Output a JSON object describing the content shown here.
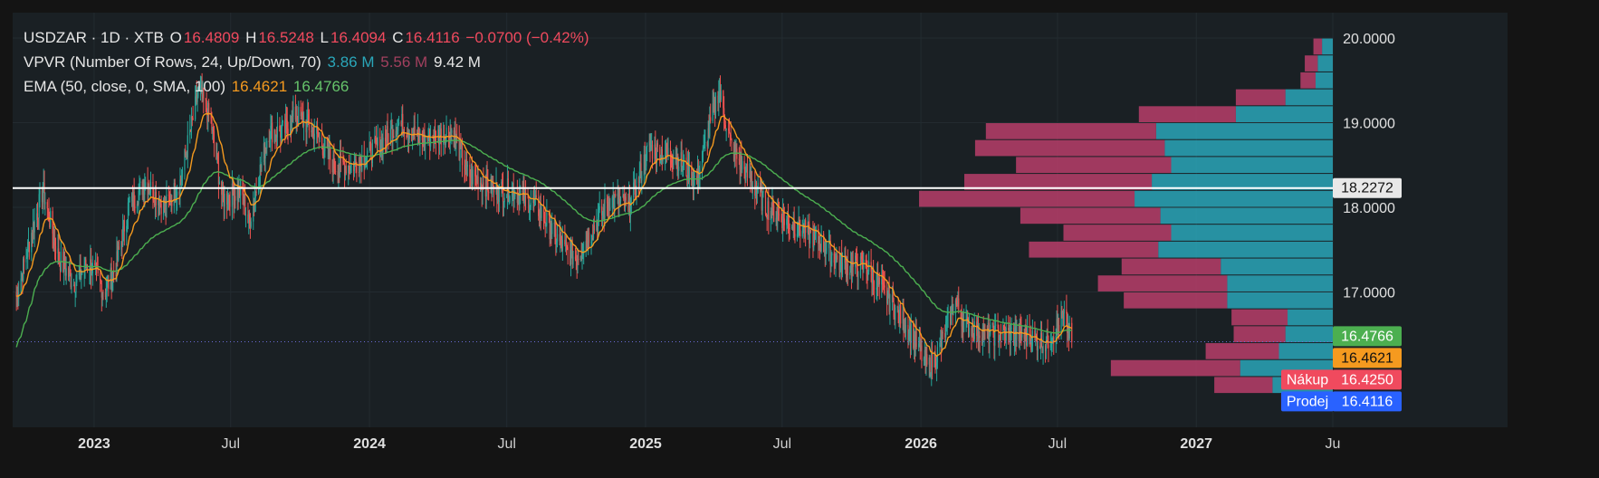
{
  "legend": {
    "symbol": "USDZAR · 1D · XTB",
    "ohlc": [
      {
        "key": "O",
        "value": "16.4809"
      },
      {
        "key": "H",
        "value": "16.5248"
      },
      {
        "key": "L",
        "value": "16.4094"
      },
      {
        "key": "C",
        "value": "16.4116"
      }
    ],
    "change": "−0.0700 (−0.42%)",
    "vpvr_label": "VPVR (Number Of Rows, 24, Up/Down, 70)",
    "vpvr_up": "3.86 M",
    "vpvr_down": "5.56 M",
    "vpvr_total": "9.42 M",
    "ema_label": "EMA (50, close, 0, SMA, 100)",
    "ema_fast": "16.4621",
    "ema_slow": "16.4766"
  },
  "colors": {
    "up": "#26a69a",
    "down": "#ef5350",
    "ema_fast": "#f59a1f",
    "ema_slow": "#4caf50",
    "vp_up": "#2aa6b9",
    "vp_down": "#c2406e",
    "hline": "#ffffff"
  },
  "chart_data": {
    "type": "candlestick",
    "x_ticks": [
      "2023",
      "Jul",
      "2024",
      "Jul",
      "2025",
      "Jul",
      "2026",
      "Jul",
      "2027",
      "Ju"
    ],
    "y_ticks": [
      "20.0000",
      "19.0000",
      "18.0000",
      "17.0000"
    ],
    "ylim": [
      15.4,
      20.3
    ],
    "xlim": [
      "2022-09-15",
      "2027-07-01"
    ],
    "anchors": [
      {
        "date": "2022-09-20",
        "close": 16.95
      },
      {
        "date": "2022-10-10",
        "close": 17.7
      },
      {
        "date": "2022-10-25",
        "close": 18.2
      },
      {
        "date": "2022-11-15",
        "close": 17.4
      },
      {
        "date": "2022-12-05",
        "close": 17.1
      },
      {
        "date": "2022-12-25",
        "close": 17.35
      },
      {
        "date": "2023-01-15",
        "close": 17.0
      },
      {
        "date": "2023-01-30",
        "close": 17.3
      },
      {
        "date": "2023-02-15",
        "close": 18.0
      },
      {
        "date": "2023-03-10",
        "close": 18.3
      },
      {
        "date": "2023-04-05",
        "close": 18.0
      },
      {
        "date": "2023-04-25",
        "close": 18.3
      },
      {
        "date": "2023-05-20",
        "close": 19.4
      },
      {
        "date": "2023-06-05",
        "close": 19.0
      },
      {
        "date": "2023-06-20",
        "close": 18.1
      },
      {
        "date": "2023-07-15",
        "close": 18.2
      },
      {
        "date": "2023-07-25",
        "close": 17.8
      },
      {
        "date": "2023-08-20",
        "close": 18.9
      },
      {
        "date": "2023-09-10",
        "close": 18.9
      },
      {
        "date": "2023-09-25",
        "close": 19.1
      },
      {
        "date": "2023-10-20",
        "close": 18.9
      },
      {
        "date": "2023-11-15",
        "close": 18.5
      },
      {
        "date": "2023-12-10",
        "close": 18.5
      },
      {
        "date": "2024-01-10",
        "close": 18.7
      },
      {
        "date": "2024-02-10",
        "close": 19.0
      },
      {
        "date": "2024-03-10",
        "close": 18.8
      },
      {
        "date": "2024-04-20",
        "close": 18.9
      },
      {
        "date": "2024-05-10",
        "close": 18.4
      },
      {
        "date": "2024-06-15",
        "close": 18.2
      },
      {
        "date": "2024-07-10",
        "close": 18.2
      },
      {
        "date": "2024-08-10",
        "close": 18.0
      },
      {
        "date": "2024-09-15",
        "close": 17.5
      },
      {
        "date": "2024-10-01",
        "close": 17.4
      },
      {
        "date": "2024-10-20",
        "close": 17.7
      },
      {
        "date": "2024-11-15",
        "close": 18.1
      },
      {
        "date": "2024-12-10",
        "close": 18.0
      },
      {
        "date": "2025-01-05",
        "close": 18.7
      },
      {
        "date": "2025-02-10",
        "close": 18.6
      },
      {
        "date": "2025-03-10",
        "close": 18.3
      },
      {
        "date": "2025-04-08",
        "close": 19.4
      },
      {
        "date": "2025-04-25",
        "close": 18.7
      },
      {
        "date": "2025-06-10",
        "close": 18.0
      },
      {
        "date": "2025-07-15",
        "close": 17.8
      },
      {
        "date": "2025-08-20",
        "close": 17.6
      },
      {
        "date": "2025-09-20",
        "close": 17.3
      },
      {
        "date": "2025-10-20",
        "close": 17.3
      },
      {
        "date": "2025-11-20",
        "close": 16.9
      },
      {
        "date": "2025-12-20",
        "close": 16.5
      },
      {
        "date": "2026-01-10",
        "close": 16.1
      },
      {
        "date": "2026-01-25",
        "close": 16.3
      },
      {
        "date": "2026-02-15",
        "close": 16.9
      },
      {
        "date": "2026-03-01",
        "close": 16.6
      },
      {
        "date": "2026-04-01",
        "close": 16.5
      },
      {
        "date": "2026-05-10",
        "close": 16.5
      },
      {
        "date": "2026-06-15",
        "close": 16.4
      },
      {
        "date": "2026-07-10",
        "close": 16.7
      },
      {
        "date": "2026-07-20",
        "close": 16.41
      }
    ],
    "volume_profile": [
      {
        "price": 19.9,
        "up": 0.05,
        "down": 0.04
      },
      {
        "price": 19.7,
        "up": 0.07,
        "down": 0.06
      },
      {
        "price": 19.5,
        "up": 0.08,
        "down": 0.07
      },
      {
        "price": 19.3,
        "up": 0.22,
        "down": 0.23
      },
      {
        "price": 19.1,
        "up": 0.45,
        "down": 0.45
      },
      {
        "price": 18.9,
        "up": 0.82,
        "down": 0.79
      },
      {
        "price": 18.7,
        "up": 0.78,
        "down": 0.88
      },
      {
        "price": 18.5,
        "up": 0.75,
        "down": 0.72
      },
      {
        "price": 18.3,
        "up": 0.84,
        "down": 0.87
      },
      {
        "price": 18.1,
        "up": 0.92,
        "down": 1.0
      },
      {
        "price": 17.9,
        "up": 0.8,
        "down": 0.65
      },
      {
        "price": 17.7,
        "up": 0.75,
        "down": 0.5
      },
      {
        "price": 17.5,
        "up": 0.81,
        "down": 0.6
      },
      {
        "price": 17.3,
        "up": 0.52,
        "down": 0.46
      },
      {
        "price": 17.1,
        "up": 0.49,
        "down": 0.6
      },
      {
        "price": 16.9,
        "up": 0.49,
        "down": 0.48
      },
      {
        "price": 16.7,
        "up": 0.21,
        "down": 0.26
      },
      {
        "price": 16.5,
        "up": 0.22,
        "down": 0.24
      },
      {
        "price": 16.3,
        "up": 0.25,
        "down": 0.34
      },
      {
        "price": 16.1,
        "up": 0.43,
        "down": 0.6
      },
      {
        "price": 15.9,
        "up": 0.28,
        "down": 0.27
      },
      {
        "price": 15.7,
        "up": 0.1,
        "down": 0.14
      }
    ],
    "horizontal_line": 18.2272,
    "last_close": 16.4116,
    "price_labels": [
      {
        "value": "18.2272",
        "price": 18.2272,
        "label": "",
        "bg": "#e8e8e8",
        "fg": "#111111"
      },
      {
        "value": "16.4766",
        "price": 16.4766,
        "label": "",
        "bg": "#4caf50",
        "fg": "#ffffff"
      },
      {
        "value": "16.4621",
        "price": 16.4621,
        "label": "",
        "bg": "#f59a1f",
        "fg": "#111111"
      },
      {
        "value": "16.4250",
        "price": 16.425,
        "label": "Nákup",
        "bg": "#f04a5e",
        "fg": "#ffffff"
      },
      {
        "value": "16.4116",
        "price": 16.4116,
        "label": "Prodej",
        "bg": "#2962ff",
        "fg": "#ffffff"
      }
    ]
  }
}
